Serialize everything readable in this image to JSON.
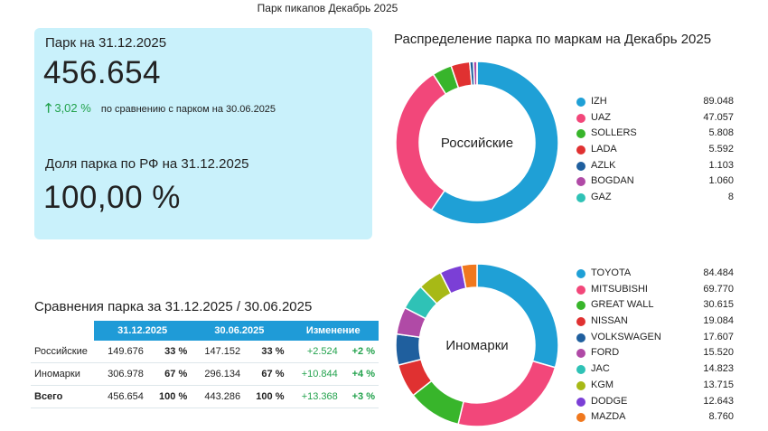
{
  "header": {
    "title": "Парк пикапов Декабрь 2025"
  },
  "kpi": {
    "fleet_label": "Парк на 31.12.2025",
    "fleet_value": "456.654",
    "change_arrow": "🡑",
    "change_pct": "3,02 %",
    "change_text": "по сравнению с парком на 30.06.2025",
    "share_label": "Доля парка по РФ на 31.12.2025",
    "share_value": "100,00 %"
  },
  "section_title": "Распределение парка по маркам на Декабрь 2025",
  "comparison": {
    "title": "Сравнения парка за 31.12.2025 / 30.06.2025",
    "headers": [
      "31.12.2025",
      "30.06.2025",
      "Изменение"
    ],
    "rows": [
      {
        "label": "Российские",
        "v1": "149.676",
        "p1": "33 %",
        "v2": "147.152",
        "p2": "33 %",
        "d": "+2.524",
        "dp": "+2 %"
      },
      {
        "label": "Иномарки",
        "v1": "306.978",
        "p1": "67 %",
        "v2": "296.134",
        "p2": "67 %",
        "d": "+10.844",
        "dp": "+4 %"
      },
      {
        "label": "Всего",
        "v1": "456.654",
        "p1": "100 %",
        "v2": "443.286",
        "p2": "100 %",
        "d": "+13.368",
        "dp": "+3 %"
      }
    ]
  },
  "chart_data": [
    {
      "type": "pie",
      "title": "Российские",
      "labels": [
        "IZH",
        "UAZ",
        "SOLLERS",
        "LADA",
        "AZLK",
        "BOGDAN",
        "GAZ"
      ],
      "values": [
        89048,
        47057,
        5808,
        5592,
        1103,
        1060,
        8
      ],
      "value_labels": [
        "89.048",
        "47.057",
        "5.808",
        "5.592",
        "1.103",
        "1.060",
        "8"
      ],
      "colors": [
        "#1fa0d6",
        "#f2477a",
        "#38b52b",
        "#e03131",
        "#1f5f9e",
        "#b04aa6",
        "#2fc2b6"
      ],
      "legend_position": "right"
    },
    {
      "type": "pie",
      "title": "Иномарки",
      "labels": [
        "TOYOTA",
        "MITSUBISHI",
        "GREAT WALL",
        "NISSAN",
        "VOLKSWAGEN",
        "FORD",
        "JAC",
        "KGM",
        "DODGE",
        "MAZDA"
      ],
      "values": [
        84484,
        69770,
        30615,
        19084,
        17607,
        15520,
        14823,
        13715,
        12643,
        8760
      ],
      "value_labels": [
        "84.484",
        "69.770",
        "30.615",
        "19.084",
        "17.607",
        "15.520",
        "14.823",
        "13.715",
        "12.643",
        "8.760"
      ],
      "colors": [
        "#1fa0d6",
        "#f2477a",
        "#38b52b",
        "#e03131",
        "#1f5f9e",
        "#b04aa6",
        "#2fc2b6",
        "#a7b916",
        "#7b3fd6",
        "#f0781e"
      ],
      "legend_position": "right"
    }
  ]
}
